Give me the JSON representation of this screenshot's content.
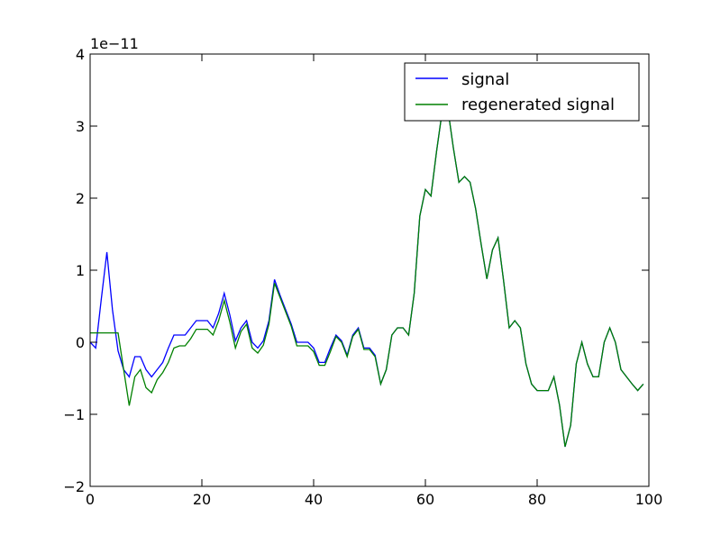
{
  "chart_data": {
    "type": "line",
    "title": "",
    "xlabel": "",
    "ylabel": "",
    "y_scale_label": "1e−11",
    "xlim": [
      0,
      100
    ],
    "ylim": [
      -2,
      4
    ],
    "x_ticks": [
      0,
      20,
      40,
      60,
      80,
      100
    ],
    "y_ticks": [
      -2,
      -1,
      0,
      1,
      2,
      3,
      4
    ],
    "x_tick_labels": [
      "0",
      "20",
      "40",
      "60",
      "80",
      "100"
    ],
    "y_tick_labels": [
      "−2",
      "−1",
      "0",
      "1",
      "2",
      "3",
      "4"
    ],
    "grid": false,
    "legend_position": "upper-right",
    "x": [
      0,
      1,
      2,
      3,
      4,
      5,
      6,
      7,
      8,
      9,
      10,
      11,
      12,
      13,
      14,
      15,
      16,
      17,
      18,
      19,
      20,
      21,
      22,
      23,
      24,
      25,
      26,
      27,
      28,
      29,
      30,
      31,
      32,
      33,
      34,
      35,
      36,
      37,
      38,
      39,
      40,
      41,
      42,
      43,
      44,
      45,
      46,
      47,
      48,
      49,
      50,
      51,
      52,
      53,
      54,
      55,
      56,
      57,
      58,
      59,
      60,
      61,
      62,
      63,
      64,
      65,
      66,
      67,
      68,
      69,
      70,
      71,
      72,
      73,
      74,
      75,
      76,
      77,
      78,
      79,
      80,
      81,
      82,
      83,
      84,
      85,
      86,
      87,
      88,
      89,
      90,
      91,
      92,
      93,
      94,
      95,
      96,
      97,
      98,
      99
    ],
    "series": [
      {
        "name": "signal",
        "color": "#0000ff",
        "values": [
          0.0,
          -0.08,
          0.6,
          1.25,
          0.45,
          -0.12,
          -0.38,
          -0.48,
          -0.2,
          -0.2,
          -0.38,
          -0.48,
          -0.38,
          -0.28,
          -0.08,
          0.1,
          0.1,
          0.1,
          0.2,
          0.3,
          0.3,
          0.3,
          0.2,
          0.4,
          0.68,
          0.38,
          0.02,
          0.2,
          0.3,
          0.0,
          -0.08,
          0.02,
          0.3,
          0.87,
          0.65,
          0.45,
          0.25,
          0.0,
          0.0,
          0.0,
          -0.08,
          -0.28,
          -0.28,
          -0.08,
          0.1,
          0.02,
          -0.18,
          0.1,
          0.2,
          -0.08,
          -0.08,
          -0.18,
          -0.58,
          -0.38,
          0.1,
          0.2,
          0.2,
          0.1,
          0.68,
          1.75,
          2.12,
          2.03,
          2.65,
          3.2,
          3.25,
          2.7,
          2.22,
          2.3,
          2.22,
          1.85,
          1.35,
          0.88,
          1.28,
          1.45,
          0.85,
          0.2,
          0.3,
          0.2,
          -0.3,
          -0.58,
          -0.67,
          -0.67,
          -0.67,
          -0.48,
          -0.87,
          -1.45,
          -1.15,
          -0.3,
          0.0,
          -0.3,
          -0.48,
          -0.48,
          0.0,
          0.2,
          0.0,
          -0.38,
          -0.48,
          -0.58,
          -0.67,
          -0.58
        ]
      },
      {
        "name": "regenerated signal",
        "color": "#008000",
        "values": [
          0.13,
          0.13,
          0.13,
          0.13,
          0.13,
          0.13,
          -0.38,
          -0.88,
          -0.48,
          -0.38,
          -0.63,
          -0.7,
          -0.52,
          -0.42,
          -0.28,
          -0.08,
          -0.05,
          -0.05,
          0.05,
          0.18,
          0.18,
          0.18,
          0.1,
          0.3,
          0.58,
          0.28,
          -0.08,
          0.15,
          0.25,
          -0.08,
          -0.15,
          -0.04,
          0.25,
          0.82,
          0.62,
          0.42,
          0.22,
          -0.05,
          -0.05,
          -0.05,
          -0.13,
          -0.32,
          -0.32,
          -0.13,
          0.08,
          0.0,
          -0.2,
          0.08,
          0.18,
          -0.1,
          -0.1,
          -0.2,
          -0.58,
          -0.38,
          0.1,
          0.2,
          0.2,
          0.1,
          0.68,
          1.75,
          2.12,
          2.03,
          2.65,
          3.2,
          3.25,
          2.7,
          2.22,
          2.3,
          2.22,
          1.85,
          1.35,
          0.88,
          1.28,
          1.45,
          0.85,
          0.2,
          0.3,
          0.2,
          -0.3,
          -0.58,
          -0.67,
          -0.67,
          -0.67,
          -0.48,
          -0.87,
          -1.45,
          -1.15,
          -0.3,
          0.0,
          -0.3,
          -0.48,
          -0.48,
          0.0,
          0.2,
          0.0,
          -0.38,
          -0.48,
          -0.58,
          -0.67,
          -0.58
        ]
      }
    ]
  }
}
